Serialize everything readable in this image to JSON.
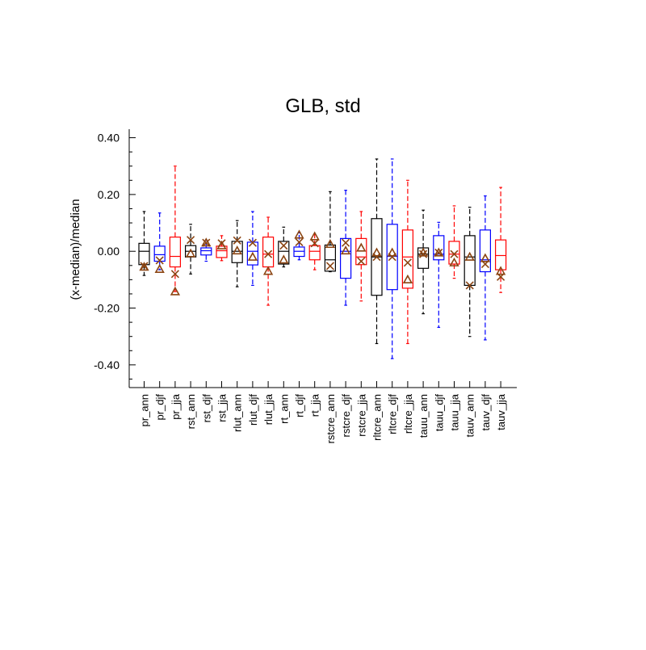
{
  "chart_data": {
    "type": "boxplot",
    "title": "GLB, std",
    "xlabel": "",
    "ylabel": "(x-median)/median",
    "ylim": [
      -0.48,
      0.43
    ],
    "ytick_values": [
      -0.4,
      -0.2,
      0.0,
      0.2,
      0.4
    ],
    "ytick_labels": [
      "-0.40",
      "-0.20",
      "0.00",
      "0.20",
      "0.40"
    ],
    "marker_color": "#8B4513",
    "categories": [
      "pr_ann",
      "pr_djf",
      "pr_jja",
      "rst_ann",
      "rst_djf",
      "rst_jja",
      "rlut_ann",
      "rlut_djf",
      "rlut_jja",
      "rt_ann",
      "rt_djf",
      "rt_jja",
      "rstcre_ann",
      "rstcre_djf",
      "rstcre_jja",
      "rltcre_ann",
      "rltcre_djf",
      "rltcre_jja",
      "tauu_ann",
      "tauu_djf",
      "tauu_jja",
      "tauv_ann",
      "tauv_djf",
      "tauv_jja"
    ],
    "colors": [
      "#000000",
      "#0000ff",
      "#ff0000",
      "#000000",
      "#0000ff",
      "#ff0000",
      "#000000",
      "#0000ff",
      "#ff0000",
      "#000000",
      "#0000ff",
      "#ff0000",
      "#000000",
      "#0000ff",
      "#ff0000",
      "#000000",
      "#0000ff",
      "#ff0000",
      "#000000",
      "#0000ff",
      "#ff0000",
      "#000000",
      "#0000ff",
      "#ff0000"
    ],
    "boxes": [
      {
        "min": -0.085,
        "q1": -0.047,
        "median": 0.0,
        "q3": 0.028,
        "max": 0.14,
        "x_marker": -0.052,
        "tri_marker": -0.055
      },
      {
        "min": -0.065,
        "q1": -0.035,
        "median": -0.012,
        "q3": 0.018,
        "max": 0.135,
        "x_marker": -0.032,
        "tri_marker": -0.063
      },
      {
        "min": -0.142,
        "q1": -0.055,
        "median": -0.018,
        "q3": 0.05,
        "max": 0.3,
        "x_marker": -0.08,
        "tri_marker": -0.142
      },
      {
        "min": -0.08,
        "q1": -0.02,
        "median": 0.0,
        "q3": 0.02,
        "max": 0.095,
        "x_marker": 0.04,
        "tri_marker": -0.008
      },
      {
        "min": -0.035,
        "q1": -0.013,
        "median": 0.002,
        "q3": 0.012,
        "max": 0.038,
        "x_marker": 0.03,
        "tri_marker": 0.03
      },
      {
        "min": -0.033,
        "q1": -0.022,
        "median": 0.002,
        "q3": 0.018,
        "max": 0.055,
        "x_marker": 0.028,
        "tri_marker": 0.02
      },
      {
        "min": -0.125,
        "q1": -0.04,
        "median": 0.0,
        "q3": 0.035,
        "max": 0.108,
        "x_marker": 0.038,
        "tri_marker": 0.002
      },
      {
        "min": -0.12,
        "q1": -0.048,
        "median": 0.0,
        "q3": 0.032,
        "max": 0.14,
        "x_marker": 0.03,
        "tri_marker": -0.02
      },
      {
        "min": -0.19,
        "q1": -0.055,
        "median": -0.01,
        "q3": 0.05,
        "max": 0.12,
        "x_marker": -0.01,
        "tri_marker": -0.07
      },
      {
        "min": -0.055,
        "q1": -0.045,
        "median": 0.0,
        "q3": 0.035,
        "max": 0.085,
        "x_marker": 0.02,
        "tri_marker": -0.03
      },
      {
        "min": -0.03,
        "q1": -0.018,
        "median": 0.0,
        "q3": 0.015,
        "max": 0.065,
        "x_marker": 0.032,
        "tri_marker": 0.058
      },
      {
        "min": -0.065,
        "q1": -0.03,
        "median": 0.0,
        "q3": 0.02,
        "max": 0.06,
        "x_marker": 0.028,
        "tri_marker": 0.052
      },
      {
        "min": -0.072,
        "q1": -0.07,
        "median": -0.03,
        "q3": 0.022,
        "max": 0.21,
        "x_marker": -0.052,
        "tri_marker": 0.025
      },
      {
        "min": -0.19,
        "q1": -0.095,
        "median": 0.0,
        "q3": 0.045,
        "max": 0.215,
        "x_marker": 0.03,
        "tri_marker": 0.002
      },
      {
        "min": -0.175,
        "q1": -0.047,
        "median": -0.02,
        "q3": 0.045,
        "max": 0.14,
        "x_marker": -0.035,
        "tri_marker": 0.012
      },
      {
        "min": -0.325,
        "q1": -0.155,
        "median": -0.02,
        "q3": 0.115,
        "max": 0.325,
        "x_marker": -0.02,
        "tri_marker": -0.005
      },
      {
        "min": -0.378,
        "q1": -0.135,
        "median": -0.018,
        "q3": 0.095,
        "max": 0.325,
        "x_marker": -0.02,
        "tri_marker": -0.005
      },
      {
        "min": -0.325,
        "q1": -0.13,
        "median": -0.02,
        "q3": 0.075,
        "max": 0.25,
        "x_marker": -0.04,
        "tri_marker": -0.1
      },
      {
        "min": -0.22,
        "q1": -0.06,
        "median": -0.01,
        "q3": 0.012,
        "max": 0.145,
        "x_marker": -0.01,
        "tri_marker": -0.005
      },
      {
        "min": -0.268,
        "q1": -0.03,
        "median": -0.01,
        "q3": 0.055,
        "max": 0.102,
        "x_marker": -0.005,
        "tri_marker": -0.005
      },
      {
        "min": -0.095,
        "q1": -0.045,
        "median": -0.01,
        "q3": 0.035,
        "max": 0.16,
        "x_marker": -0.01,
        "tri_marker": -0.04
      },
      {
        "min": -0.3,
        "q1": -0.12,
        "median": -0.02,
        "q3": 0.055,
        "max": 0.155,
        "x_marker": -0.12,
        "tri_marker": -0.02
      },
      {
        "min": -0.312,
        "q1": -0.072,
        "median": -0.03,
        "q3": 0.075,
        "max": 0.195,
        "x_marker": -0.045,
        "tri_marker": -0.025
      },
      {
        "min": -0.145,
        "q1": -0.065,
        "median": -0.015,
        "q3": 0.04,
        "max": 0.225,
        "x_marker": -0.09,
        "tri_marker": -0.07
      }
    ]
  }
}
